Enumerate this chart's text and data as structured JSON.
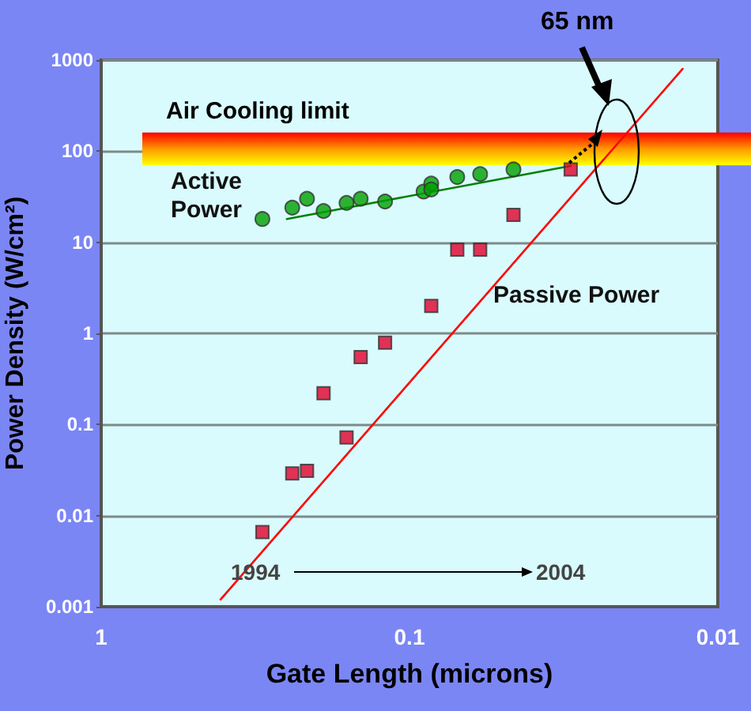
{
  "chart_data": {
    "type": "scatter",
    "xlabel": "Gate Length (microns)",
    "ylabel": "Power Density (W/cm²)",
    "log": "xy",
    "xlim": [
      1,
      0.01
    ],
    "xticks": [
      1,
      0.1,
      0.01
    ],
    "ylim": [
      0.001,
      1000
    ],
    "yticks": [
      0.001,
      0.01,
      0.1,
      1,
      10,
      100,
      1000
    ],
    "grid": "y",
    "series": [
      {
        "name": "Active Power",
        "type": "scatter",
        "marker": "circle",
        "color": "#00a000",
        "x": [
          0.3,
          0.24,
          0.215,
          0.19,
          0.16,
          0.144,
          0.12,
          0.09,
          0.085,
          0.085,
          0.07,
          0.059,
          0.046
        ],
        "values": [
          18,
          24,
          30,
          22,
          27,
          30,
          28,
          36,
          44,
          38,
          52,
          56,
          63
        ]
      },
      {
        "type": "line",
        "marker": "none",
        "color": "#008000",
        "x": [
          0.25,
          0.03
        ],
        "values": [
          18,
          69
        ]
      },
      {
        "name": "Passive Power",
        "type": "scatter",
        "marker": "square",
        "color": "#e0002a",
        "x": [
          0.3,
          0.24,
          0.215,
          0.19,
          0.16,
          0.144,
          0.12,
          0.085,
          0.07,
          0.059,
          0.046,
          0.03
        ],
        "values": [
          0.0066,
          0.029,
          0.031,
          0.22,
          0.072,
          0.55,
          0.79,
          2.0,
          8.3,
          8.3,
          20,
          63
        ]
      },
      {
        "type": "line",
        "marker": "none",
        "color": "#ff0000",
        "x": [
          0.41,
          0.013
        ],
        "values": [
          0.0012,
          800
        ]
      }
    ],
    "bands": [
      {
        "axis": "y",
        "from": 70,
        "to": 160,
        "label": "Air Cooling limit"
      }
    ],
    "annotations": [
      "65 nm",
      "1994",
      "2004"
    ]
  }
}
